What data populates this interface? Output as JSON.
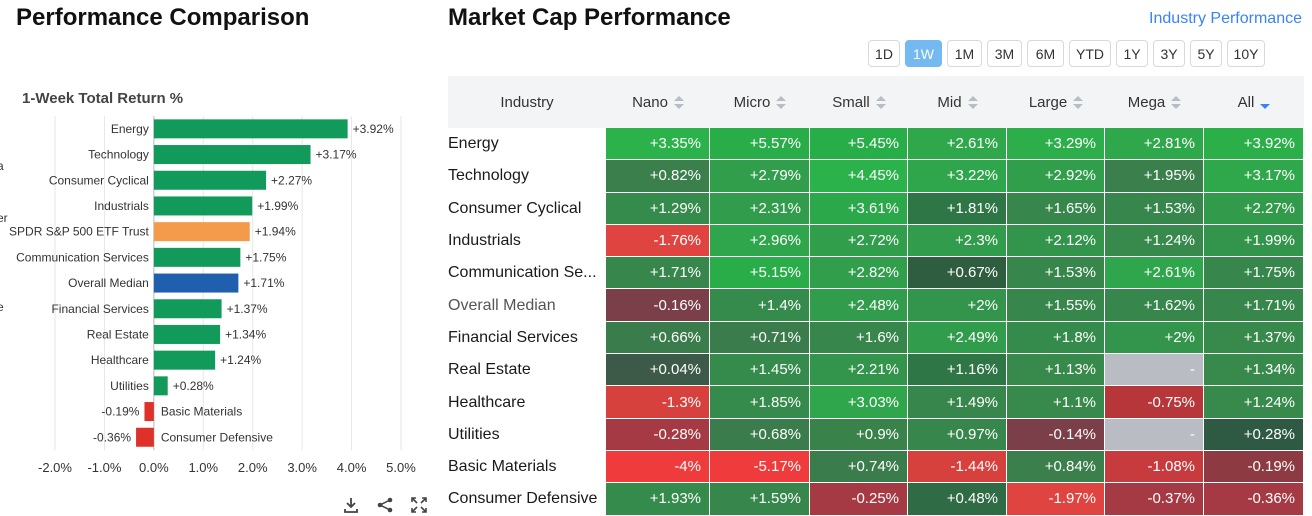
{
  "left": {
    "title": "Performance Comparison",
    "chart_subtitle": "1-Week Total Return %",
    "toolbar": {
      "download_icon": "download-icon",
      "share_icon": "share-icon",
      "expand_icon": "expand-icon"
    }
  },
  "chart_data": {
    "type": "bar",
    "orientation": "horizontal",
    "title": "1-Week Total Return %",
    "categories": [
      "Energy",
      "Technology",
      "Consumer Cyclical",
      "Industrials",
      "SPDR S&P 500 ETF Trust",
      "Communication Services",
      "Overall Median",
      "Financial Services",
      "Real Estate",
      "Healthcare",
      "Utilities",
      "Basic Materials",
      "Consumer Defensive"
    ],
    "values": [
      3.92,
      3.17,
      2.27,
      1.99,
      1.94,
      1.75,
      1.71,
      1.37,
      1.34,
      1.24,
      0.28,
      -0.19,
      -0.36
    ],
    "labels": [
      "+3.92%",
      "+3.17%",
      "+2.27%",
      "+1.99%",
      "+1.94%",
      "+1.75%",
      "+1.71%",
      "+1.37%",
      "+1.34%",
      "+1.24%",
      "+0.28%",
      "-0.19%",
      "-0.36%"
    ],
    "bar_colors": [
      "#119a5a",
      "#119a5a",
      "#119a5a",
      "#119a5a",
      "#f39b4b",
      "#119a5a",
      "#1f5fae",
      "#119a5a",
      "#119a5a",
      "#119a5a",
      "#119a5a",
      "#dd3129",
      "#dd3129"
    ],
    "xlim": [
      -2.0,
      5.0
    ],
    "xticks": [
      -2.0,
      -1.0,
      0.0,
      1.0,
      2.0,
      3.0,
      4.0,
      5.0
    ],
    "xtick_labels": [
      "-2.0%",
      "-1.0%",
      "0.0%",
      "1.0%",
      "2.0%",
      "3.0%",
      "4.0%",
      "5.0%"
    ],
    "grid": true,
    "left_edge_fragments": [
      "a",
      "er",
      "e"
    ]
  },
  "right": {
    "title": "Market Cap Performance",
    "link": "Industry Performance",
    "periods": [
      "1D",
      "1W",
      "1M",
      "3M",
      "6M",
      "YTD",
      "1Y",
      "3Y",
      "5Y",
      "10Y"
    ],
    "active_period": "1W",
    "columns": [
      "Industry",
      "Nano",
      "Micro",
      "Small",
      "Mid",
      "Large",
      "Mega",
      "All"
    ],
    "sorted_column": "All",
    "rows": [
      {
        "name": "Energy",
        "cells": [
          "+3.35%",
          "+5.57%",
          "+5.45%",
          "+2.61%",
          "+3.29%",
          "+2.81%",
          "+3.92%"
        ],
        "colors": [
          "#2bb24a",
          "#28ad48",
          "#27ae49",
          "#2ea84b",
          "#2caf4a",
          "#2ea84b",
          "#2aaf49"
        ]
      },
      {
        "name": "Technology",
        "cells": [
          "+0.82%",
          "+2.79%",
          "+4.45%",
          "+3.22%",
          "+2.92%",
          "+1.95%",
          "+3.17%"
        ],
        "colors": [
          "#3a7f4c",
          "#309e4b",
          "#2bb24a",
          "#2fa64b",
          "#309e4b",
          "#3a7f4c",
          "#2ea84b"
        ]
      },
      {
        "name": "Consumer Cyclical",
        "cells": [
          "+1.29%",
          "+2.31%",
          "+3.61%",
          "+1.81%",
          "+1.65%",
          "+1.53%",
          "+2.27%"
        ],
        "colors": [
          "#358b4b",
          "#319c4b",
          "#2ba94a",
          "#2f7646",
          "#37864b",
          "#37864b",
          "#329a4b"
        ]
      },
      {
        "name": "Industrials",
        "cells": [
          "-1.76%",
          "+2.96%",
          "+2.72%",
          "+2.3%",
          "+2.12%",
          "+1.24%",
          "+1.99%"
        ],
        "colors": [
          "#e04440",
          "#2fa64b",
          "#309e4b",
          "#319c4b",
          "#33944b",
          "#378a4b",
          "#33944b"
        ]
      },
      {
        "name": "Communication Se...",
        "cells": [
          "+1.71%",
          "+5.15%",
          "+2.82%",
          "+0.67%",
          "+1.53%",
          "+2.61%",
          "+1.75%"
        ],
        "colors": [
          "#37864b",
          "#28ad48",
          "#309e4b",
          "#2f5d3f",
          "#37864b",
          "#2fa64b",
          "#37864b"
        ]
      },
      {
        "name": "Overall Median",
        "cells": [
          "-0.16%",
          "+1.4%",
          "+2.48%",
          "+2%",
          "+1.55%",
          "+1.62%",
          "+1.71%"
        ],
        "colors": [
          "#7a3f48",
          "#358b4b",
          "#319c4b",
          "#33944b",
          "#37864b",
          "#37864b",
          "#37864b"
        ]
      },
      {
        "name": "Financial Services",
        "cells": [
          "+0.66%",
          "+0.71%",
          "+1.6%",
          "+2.49%",
          "+1.8%",
          "+2%",
          "+1.37%"
        ],
        "colors": [
          "#3b7c4c",
          "#3b7c4c",
          "#37864b",
          "#319c4b",
          "#358b4b",
          "#33944b",
          "#378a4b"
        ]
      },
      {
        "name": "Real Estate",
        "cells": [
          "+0.04%",
          "+1.45%",
          "+2.21%",
          "+1.16%",
          "+1.13%",
          "-",
          "+1.34%"
        ],
        "colors": [
          "#3d5a48",
          "#358b4b",
          "#33944b",
          "#2f7646",
          "#378a4b",
          "#b9bcc2",
          "#378a4b"
        ]
      },
      {
        "name": "Healthcare",
        "cells": [
          "-1.3%",
          "+1.85%",
          "+3.03%",
          "+1.49%",
          "+1.1%",
          "-0.75%",
          "+1.24%"
        ],
        "colors": [
          "#d6413e",
          "#358b4b",
          "#2fa64b",
          "#37864b",
          "#378a4b",
          "#b7363a",
          "#378a4b"
        ]
      },
      {
        "name": "Utilities",
        "cells": [
          "-0.28%",
          "+0.68%",
          "+0.9%",
          "+0.97%",
          "-0.14%",
          "-",
          "+0.28%"
        ],
        "colors": [
          "#a63a44",
          "#3b7c4c",
          "#398249",
          "#37864b",
          "#7a3f48",
          "#b9bcc2",
          "#2e5a44"
        ]
      },
      {
        "name": "Basic Materials",
        "cells": [
          "-4%",
          "-5.17%",
          "+0.74%",
          "-1.44%",
          "+0.84%",
          "-1.08%",
          "-0.19%"
        ],
        "colors": [
          "#ef3b3b",
          "#ef3b3b",
          "#3b7c4c",
          "#d6413e",
          "#3a7f4c",
          "#c73b3e",
          "#8e3a43"
        ]
      },
      {
        "name": "Consumer Defensive",
        "cells": [
          "+1.93%",
          "+1.59%",
          "-0.25%",
          "+0.48%",
          "-1.97%",
          "-0.37%",
          "-0.36%"
        ],
        "colors": [
          "#358b4b",
          "#37864b",
          "#a63a44",
          "#2f6b45",
          "#e04440",
          "#a63a44",
          "#a63a44"
        ]
      }
    ]
  }
}
